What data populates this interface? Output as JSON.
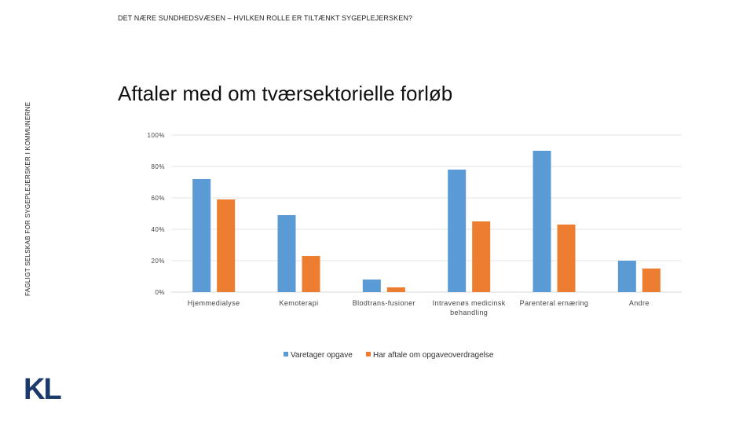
{
  "header": {
    "top_title": "DET NÆRE SUNDHEDSVÆSEN – HVILKEN ROLLE ER TILTÆNKT SYGEPLEJERSKEN?",
    "side_text": "FAGLIGT SELSKAB FOR SYGEPLEJERSKER I KOMMUNERNE"
  },
  "logo": {
    "text": "KL",
    "color": "#1b3a6b"
  },
  "chart_data": {
    "type": "bar",
    "title": "Aftaler med om tværsektorielle forløb",
    "categories": [
      [
        "Hjemmedialyse"
      ],
      [
        "Kemoterapi"
      ],
      [
        "Blodtrans-fusioner"
      ],
      [
        "Intravenøs medicinsk",
        "behandling"
      ],
      [
        "Parenteral ernæring"
      ],
      [
        "Andre"
      ]
    ],
    "series": [
      {
        "name": "Varetager opgave",
        "color": "#5b9bd5",
        "values": [
          72,
          49,
          8,
          78,
          90,
          20
        ]
      },
      {
        "name": "Har aftale om opgaveoverdragelse",
        "color": "#ed7d31",
        "values": [
          59,
          23,
          3,
          45,
          43,
          15
        ]
      }
    ],
    "yticks": [
      "0%",
      "20%",
      "40%",
      "60%",
      "80%",
      "100%"
    ],
    "ylim": [
      0,
      100
    ],
    "grid": true,
    "legend": "bottom"
  }
}
